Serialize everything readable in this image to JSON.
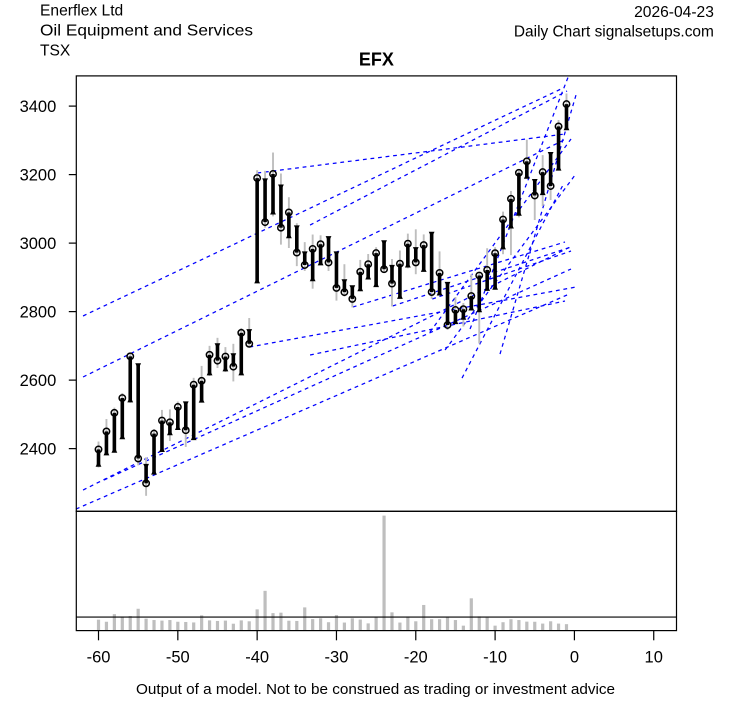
{
  "header": {
    "company": "Enerflex Ltd",
    "industry": "Oil Equipment and Services",
    "exchange": "TSX",
    "date": "2026-04-23",
    "chart_type_line": "Daily Chart signalsetups.com"
  },
  "title": "EFX",
  "footer": {
    "disclaimer": "Output of a model. Not to be construed as trading or investment advice"
  },
  "colors": {
    "background": "#ffffff",
    "axis_and_text": "#000000",
    "ohlc_body": "#000000",
    "ohlc_range": "#bebebe",
    "volume_bar": "#bebebe",
    "trendline": "#0000ff"
  },
  "chart_data": {
    "type": "ohlc+volume",
    "symbol": "EFX",
    "x_axis": {
      "label": "",
      "ticks": [
        -60,
        -50,
        -40,
        -30,
        -20,
        -10,
        0,
        10
      ],
      "range": [
        -62.8,
        12.87
      ],
      "unit": "days-ago"
    },
    "y_axis": {
      "label": "",
      "ticks": [
        2400,
        2600,
        2800,
        3000,
        3200,
        3400
      ],
      "range": [
        2217,
        3488.2
      ]
    },
    "volume_axis": {
      "range_pct": [
        0,
        103.8
      ],
      "reference_line_pct": 11.8
    },
    "legend": "none",
    "grid": "off",
    "close_marker": "circle",
    "bars": [
      {
        "t": -60,
        "open": 2364.7,
        "high": 2420.7,
        "low": 2344.8,
        "close": 2397.7,
        "volume": 9.5
      },
      {
        "t": -59,
        "open": 2397.7,
        "high": 2486.4,
        "low": 2384.2,
        "close": 2450.2,
        "volume": 7.7
      },
      {
        "t": -58,
        "open": 2405.5,
        "high": 2519.7,
        "low": 2397.7,
        "close": 2504.5,
        "volume": 14.3
      },
      {
        "t": -57,
        "open": 2445.0,
        "high": 2562.3,
        "low": 2440.6,
        "close": 2547.7,
        "volume": 12.3
      },
      {
        "t": -56,
        "open": 2552.7,
        "high": 2678.0,
        "low": 2534.0,
        "close": 2669.5,
        "volume": 12.7
      },
      {
        "t": -55,
        "open": 2631.8,
        "high": 2635.3,
        "low": 2351.2,
        "close": 2371.1,
        "volume": 19.0
      },
      {
        "t": -54,
        "open": 2338.1,
        "high": 2374.6,
        "low": 2262.2,
        "close": 2298.7,
        "volume": 10.4
      },
      {
        "t": -53,
        "open": 2341.6,
        "high": 2457.2,
        "low": 2338.1,
        "close": 2443.8,
        "volume": 9.2
      },
      {
        "t": -52,
        "open": 2407.6,
        "high": 2513.0,
        "low": 2404.1,
        "close": 2482.0,
        "volume": 8.7
      },
      {
        "t": -51,
        "open": 2456.6,
        "high": 2514.5,
        "low": 2422.2,
        "close": 2476.8,
        "volume": 9.2
      },
      {
        "t": -50,
        "open": 2471.8,
        "high": 2537.5,
        "low": 2466.0,
        "close": 2521.5,
        "volume": 7.7
      },
      {
        "t": -49,
        "open": 2520.3,
        "high": 2520.3,
        "low": 2405.0,
        "close": 2453.7,
        "volume": 7.5
      },
      {
        "t": -48,
        "open": 2442.3,
        "high": 2606.7,
        "low": 2439.4,
        "close": 2586.6,
        "volume": 7.1
      },
      {
        "t": -47,
        "open": 2551.8,
        "high": 2641.5,
        "low": 2543.4,
        "close": 2598.0,
        "volume": 13.3
      },
      {
        "t": -46,
        "open": 2631.5,
        "high": 2700.1,
        "low": 2612.0,
        "close": 2673.9,
        "volume": 8.9
      },
      {
        "t": -45,
        "open": 2690.2,
        "high": 2723.5,
        "low": 2635.3,
        "close": 2656.9,
        "volume": 8.4
      },
      {
        "t": -44,
        "open": 2643.2,
        "high": 2696.4,
        "low": 2623.6,
        "close": 2668.9,
        "volume": 8.7
      },
      {
        "t": -43,
        "open": 2661.0,
        "high": 2706.0,
        "low": 2596.2,
        "close": 2639.4,
        "volume": 6.0
      },
      {
        "t": -42,
        "open": 2631.5,
        "high": 2752.1,
        "low": 2625.7,
        "close": 2738.1,
        "volume": 8.9
      },
      {
        "t": -41,
        "open": 2731.4,
        "high": 2781.3,
        "low": 2698.1,
        "close": 2706.0,
        "volume": 8.1
      },
      {
        "t": -40,
        "open": 2899.9,
        "high": 3212.8,
        "low": 2893.4,
        "close": 3189.8,
        "volume": 18.5
      },
      {
        "t": -39,
        "open": 3171.4,
        "high": 3211.1,
        "low": 3045.0,
        "close": 3061.3,
        "volume": 34.6
      },
      {
        "t": -38,
        "open": 3101.0,
        "high": 3264.5,
        "low": 3078.0,
        "close": 3201.8,
        "volume": 15.2
      },
      {
        "t": -37,
        "open": 3153.6,
        "high": 3203.2,
        "low": 2995.6,
        "close": 3045.0,
        "volume": 15.6
      },
      {
        "t": -36,
        "open": 3031.8,
        "high": 3134.0,
        "low": 2985.7,
        "close": 3089.6,
        "volume": 8.6
      },
      {
        "t": -35,
        "open": 3034.2,
        "high": 3058.1,
        "low": 2932.8,
        "close": 2972.3,
        "volume": 8.4
      },
      {
        "t": -34,
        "open": 2958.2,
        "high": 3002.9,
        "low": 2918.8,
        "close": 2936.1,
        "volume": 20.2
      },
      {
        "t": -33,
        "open": 2906.3,
        "high": 3025.1,
        "low": 2866.9,
        "close": 2983.1,
        "volume": 10.0
      },
      {
        "t": -32,
        "open": 2952.4,
        "high": 3022.8,
        "low": 2948.3,
        "close": 2996.8,
        "volume": 10.7
      },
      {
        "t": -31,
        "open": 3002.9,
        "high": 3005.3,
        "low": 2918.8,
        "close": 2943.4,
        "volume": 7.3
      },
      {
        "t": -30,
        "open": 2958.2,
        "high": 2963.2,
        "low": 2832.1,
        "close": 2869.2,
        "volume": 13.5
      },
      {
        "t": -29,
        "open": 2876.8,
        "high": 2938.4,
        "low": 2844.4,
        "close": 2856.9,
        "volume": 7.0
      },
      {
        "t": -28,
        "open": 2859.3,
        "high": 2869.2,
        "low": 2812.3,
        "close": 2837.1,
        "volume": 10.7
      },
      {
        "t": -27,
        "open": 2876.8,
        "high": 2950.9,
        "low": 2859.3,
        "close": 2916.2,
        "volume": 9.6
      },
      {
        "t": -26,
        "open": 2911.2,
        "high": 2968.2,
        "low": 2906.3,
        "close": 2938.4,
        "volume": 6.3
      },
      {
        "t": -25,
        "open": 2889.1,
        "high": 2988.0,
        "low": 2884.1,
        "close": 2970.8,
        "volume": 12.2
      },
      {
        "t": -24,
        "open": 2990.7,
        "high": 3000.6,
        "low": 2914.2,
        "close": 2923.8,
        "volume": 100.0
      },
      {
        "t": -23,
        "open": 2919.1,
        "high": 2953.6,
        "low": 2815.2,
        "close": 2881.8,
        "volume": 15.9
      },
      {
        "t": -22,
        "open": 2854.6,
        "high": 2978.4,
        "low": 2839.7,
        "close": 2939.9,
        "volume": 7.0
      },
      {
        "t": -21,
        "open": 2946.3,
        "high": 3027.7,
        "low": 2926.4,
        "close": 2998.2,
        "volume": 12.3
      },
      {
        "t": -20,
        "open": 2970.8,
        "high": 3040.3,
        "low": 2909.2,
        "close": 2943.6,
        "volume": 8.1
      },
      {
        "t": -19,
        "open": 2933.7,
        "high": 3025.4,
        "low": 2931.4,
        "close": 2994.2,
        "volume": 22.3
      },
      {
        "t": -18,
        "open": 3015.5,
        "high": 3030.4,
        "low": 2837.4,
        "close": 2857.2,
        "volume": 9.9
      },
      {
        "t": -17,
        "open": 2864.5,
        "high": 2975.8,
        "low": 2854.3,
        "close": 2913.0,
        "volume": 9.9
      },
      {
        "t": -16,
        "open": 2869.2,
        "high": 2880.6,
        "low": 2746.3,
        "close": 2760.9,
        "volume": 11.9
      },
      {
        "t": -15,
        "open": 2781.0,
        "high": 2842.6,
        "low": 2768.8,
        "close": 2804.7,
        "volume": 9.2
      },
      {
        "t": -14,
        "open": 2793.6,
        "high": 2825.1,
        "low": 2756.5,
        "close": 2807.0,
        "volume": 4.3
      },
      {
        "t": -13,
        "open": 2820.7,
        "high": 2909.2,
        "low": 2810.5,
        "close": 2845.5,
        "volume": 28.1
      },
      {
        "t": -12,
        "open": 2815.8,
        "high": 2912.7,
        "low": 2706.9,
        "close": 2905.4,
        "volume": 12.4
      },
      {
        "t": -11,
        "open": 2878.2,
        "high": 2985.1,
        "low": 2874.7,
        "close": 2921.5,
        "volume": 11.3
      },
      {
        "t": -10,
        "open": 2881.2,
        "high": 2988.0,
        "low": 2878.2,
        "close": 2970.5,
        "volume": 4.3
      },
      {
        "t": -9,
        "open": 2999.4,
        "high": 3092.0,
        "low": 2967.6,
        "close": 3068.9,
        "volume": 7.3
      },
      {
        "t": -8,
        "open": 3060.1,
        "high": 3152.4,
        "low": 2965.0,
        "close": 3129.3,
        "volume": 9.9
      },
      {
        "t": -7,
        "open": 3097.5,
        "high": 3216.4,
        "low": 3075.3,
        "close": 3205.3,
        "volume": 9.2
      },
      {
        "t": -6,
        "open": 3205.3,
        "high": 3301.9,
        "low": 3201.8,
        "close": 3238.8,
        "volume": 7.8
      },
      {
        "t": -5,
        "open": 3169.6,
        "high": 3185.7,
        "low": 3067.4,
        "close": 3139.0,
        "volume": 7.7
      },
      {
        "t": -4,
        "open": 3157.7,
        "high": 3256.9,
        "low": 3108.3,
        "close": 3207.3,
        "volume": 6.1
      },
      {
        "t": -3,
        "open": 3248.5,
        "high": 3263.1,
        "low": 3125.8,
        "close": 3166.7,
        "volume": 8.1
      },
      {
        "t": -2,
        "open": 3229.2,
        "high": 3359.4,
        "low": 3219.9,
        "close": 3340.7,
        "volume": 6.1
      },
      {
        "t": -1,
        "open": 3346.9,
        "high": 3436.8,
        "low": 3343.6,
        "close": 3405.8,
        "volume": 5.6
      }
    ],
    "trendlines": [
      {
        "t1": -62.84,
        "p1": 2223.6,
        "t2": -0.93,
        "p2": 2848.5
      },
      {
        "t1": -61.95,
        "p1": 2279.1,
        "t2": -0.55,
        "p2": 2988.6
      },
      {
        "t1": -59.31,
        "p1": 2308.3,
        "t2": -0.43,
        "p2": 2924.4
      },
      {
        "t1": -61.95,
        "p1": 2787.2,
        "t2": -1.44,
        "p2": 3452.8
      },
      {
        "t1": -61.95,
        "p1": 2609.1,
        "t2": -1.06,
        "p2": 3303.9
      },
      {
        "t1": -40.97,
        "p1": 2696.6,
        "t2": 0.2,
        "p2": 2871.8
      },
      {
        "t1": -39.97,
        "p1": 3204.7,
        "t2": -1.19,
        "p2": 3318.5
      },
      {
        "t1": -27.94,
        "p1": 2813.4,
        "t2": -1.19,
        "p2": 3003.2
      },
      {
        "t1": -22.92,
        "p1": 2816.4,
        "t2": -0.43,
        "p2": 2988.6
      },
      {
        "t1": -17.92,
        "p1": 2836.8,
        "t2": -0.43,
        "p2": 2976.9
      },
      {
        "t1": -33.33,
        "p1": 2673.3,
        "t2": -1.19,
        "p2": 2830.9
      },
      {
        "t1": -33.33,
        "p1": 3052.8,
        "t2": -0.93,
        "p2": 3444.1
      },
      {
        "t1": -18.21,
        "p1": 2740.4,
        "t2": -0.43,
        "p2": 3303.9
      },
      {
        "t1": -16.31,
        "p1": 2687.9,
        "t2": 0.08,
        "p2": 3198.8
      },
      {
        "t1": -14.17,
        "p1": 2606.1,
        "t2": -1.44,
        "p2": 3169.6
      },
      {
        "t1": -13.16,
        "p1": 2749.2,
        "t2": -0.74,
        "p2": 3487.9
      },
      {
        "t1": -9.38,
        "p1": 2676.2,
        "t2": 0.2,
        "p2": 3432.4
      }
    ]
  }
}
